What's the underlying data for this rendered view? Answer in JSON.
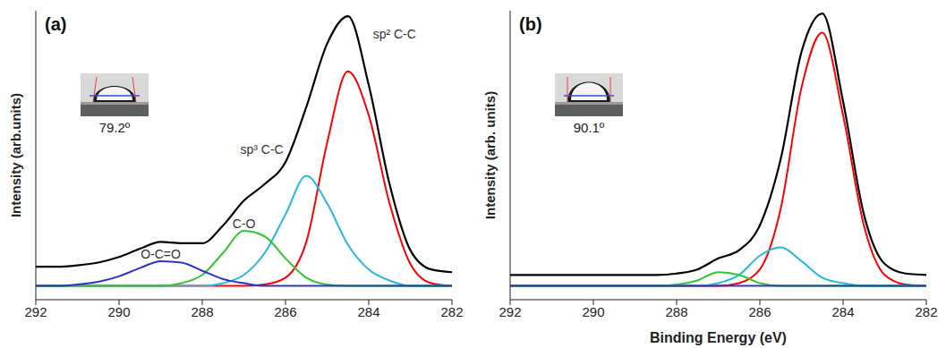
{
  "chart_data": [
    {
      "type": "line",
      "title": "(a)",
      "y_label": "Intensity (arb.units)",
      "annotations": [
        "79.2º"
      ],
      "x": [
        282,
        282.5,
        283,
        283.5,
        284,
        284.5,
        285,
        285.5,
        286,
        286.5,
        287,
        287.5,
        288,
        288.5,
        289,
        289.5,
        290,
        290.5,
        291,
        291.5,
        292
      ],
      "xlim": [
        292,
        282
      ],
      "xticks": [
        292,
        290,
        288,
        286,
        284,
        282
      ],
      "ylim": [
        -5,
        100
      ],
      "tick_labels": "x",
      "grid": false,
      "series": [
        {
          "color": "#000000",
          "values": [
            5,
            6,
            13,
            37,
            73,
            98,
            88,
            65,
            45,
            37,
            31,
            22,
            15.5,
            15.5,
            16,
            13.5,
            10.5,
            8.5,
            7.5,
            7,
            7
          ]
        },
        {
          "name": "sp² C-C",
          "color": "#ff0000",
          "values": [
            0,
            1,
            8,
            30,
            62,
            78,
            52,
            16,
            3,
            0.5,
            0,
            0,
            0,
            0,
            0,
            0,
            0,
            0,
            0,
            0,
            0
          ]
        },
        {
          "name": "sp³ C-C",
          "color": "#25b8e0",
          "values": [
            0,
            0,
            0,
            2,
            6,
            15,
            30,
            40,
            26,
            12,
            4,
            1,
            0,
            0,
            0,
            0,
            0,
            0,
            0,
            0,
            0
          ]
        },
        {
          "name": "C-O",
          "color": "#35c435",
          "values": [
            0,
            0,
            0,
            0,
            0,
            0,
            0.5,
            3,
            10,
            18,
            20,
            12,
            4,
            1,
            0,
            0,
            0,
            0,
            0,
            0,
            0
          ]
        },
        {
          "name": "O-C=O",
          "color": "#2a35c4",
          "values": [
            0,
            0,
            0,
            0,
            0,
            0,
            0,
            0,
            0,
            0,
            1,
            2.5,
            5.5,
            8.5,
            9,
            6.5,
            3.5,
            1.5,
            0.5,
            0,
            0
          ]
        }
      ]
    },
    {
      "type": "line",
      "title": "(b)",
      "y_label": "Intensity (arb. units)",
      "x_label": "Binding Energy (eV)",
      "annotations": [
        "90.1º"
      ],
      "x": [
        282,
        282.5,
        283,
        283.5,
        284,
        284.5,
        285,
        285.5,
        286,
        286.5,
        287,
        287.5,
        288,
        288.5,
        289,
        289.5,
        290,
        290.5,
        291,
        291.5,
        292
      ],
      "xlim": [
        292,
        282
      ],
      "xticks": [
        292,
        290,
        288,
        286,
        284,
        282
      ],
      "ylim": [
        -5,
        100
      ],
      "tick_labels": "x",
      "grid": false,
      "series": [
        {
          "color": "#000000",
          "values": [
            4,
            4.5,
            8,
            26,
            67,
            99,
            85,
            46,
            22,
            13,
            10,
            6,
            4.5,
            4,
            4,
            4,
            4,
            4,
            4,
            4,
            4
          ]
        },
        {
          "color": "#ff0000",
          "values": [
            0,
            0.5,
            4,
            22,
            62,
            92,
            72,
            28,
            6,
            1,
            0,
            0,
            0,
            0,
            0,
            0,
            0,
            0,
            0,
            0,
            0
          ]
        },
        {
          "color": "#25b8e0",
          "values": [
            0,
            0,
            0,
            0,
            1,
            3,
            9,
            14,
            11,
            4,
            1,
            0,
            0,
            0,
            0,
            0,
            0,
            0,
            0,
            0,
            0
          ]
        },
        {
          "color": "#35c435",
          "values": [
            0,
            0,
            0,
            0,
            0,
            0,
            0,
            0,
            1,
            4,
            5,
            2,
            0.5,
            0,
            0,
            0,
            0,
            0,
            0,
            0,
            0
          ]
        },
        {
          "color": "#2a35c4",
          "values": [
            0,
            0,
            0,
            0,
            0,
            0,
            0,
            0,
            0,
            0,
            0,
            0,
            0,
            0,
            0,
            0,
            0,
            0,
            0,
            0,
            0
          ]
        }
      ]
    }
  ]
}
